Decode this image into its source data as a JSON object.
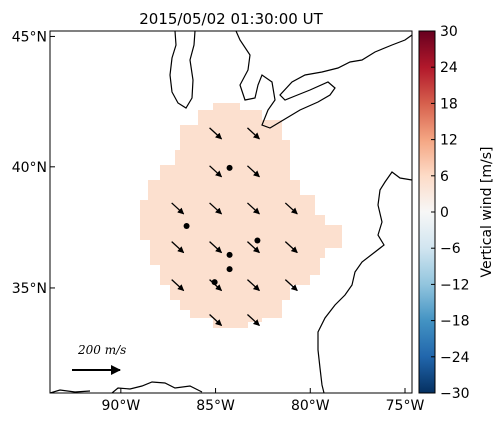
{
  "chart_data": {
    "type": "map",
    "title": "2015/05/02 01:30:00 UT",
    "xlim": [
      -93.74,
      -74.63
    ],
    "ylim": [
      30.4,
      45.2
    ],
    "xticks": [
      {
        "value": -90,
        "label": "90°W"
      },
      {
        "value": -85,
        "label": "85°W"
      },
      {
        "value": -80,
        "label": "80°W"
      },
      {
        "value": -75,
        "label": "75°W"
      }
    ],
    "yticks": [
      {
        "value": 35,
        "label": "35°N"
      },
      {
        "value": 40,
        "label": "40°N"
      },
      {
        "value": 45,
        "label": "45°N"
      }
    ],
    "colorbar": {
      "label": "Vertical wind [m/s]",
      "clim": [
        -30,
        30
      ],
      "ticks": [
        {
          "value": -30,
          "label": "−30"
        },
        {
          "value": -24,
          "label": "−24"
        },
        {
          "value": -18,
          "label": "−18"
        },
        {
          "value": -12,
          "label": "−12"
        },
        {
          "value": -6,
          "label": "−6"
        },
        0,
        6,
        12,
        18,
        24,
        30
      ]
    },
    "field_value": 5,
    "vectors": {
      "lon": [
        -85,
        -83,
        -85,
        -83,
        -87,
        -85,
        -83,
        -81,
        -87,
        -85,
        -83,
        -81,
        -87,
        -85,
        -83,
        -81,
        -85,
        -83
      ],
      "lat": [
        41.3,
        41.3,
        39.8,
        39.8,
        38.3,
        38.3,
        38.3,
        38.3,
        36.7,
        36.7,
        36.7,
        36.7,
        35.1,
        35.1,
        35.1,
        35.1,
        33.6,
        33.6
      ]
    },
    "points": {
      "lon": [
        -84.26,
        -86.53,
        -82.79,
        -84.26,
        -84.26,
        -85.05
      ],
      "lat": [
        39.96,
        37.6,
        37.0,
        36.4,
        35.8,
        35.25
      ]
    },
    "scale_label": "200 m/s"
  }
}
